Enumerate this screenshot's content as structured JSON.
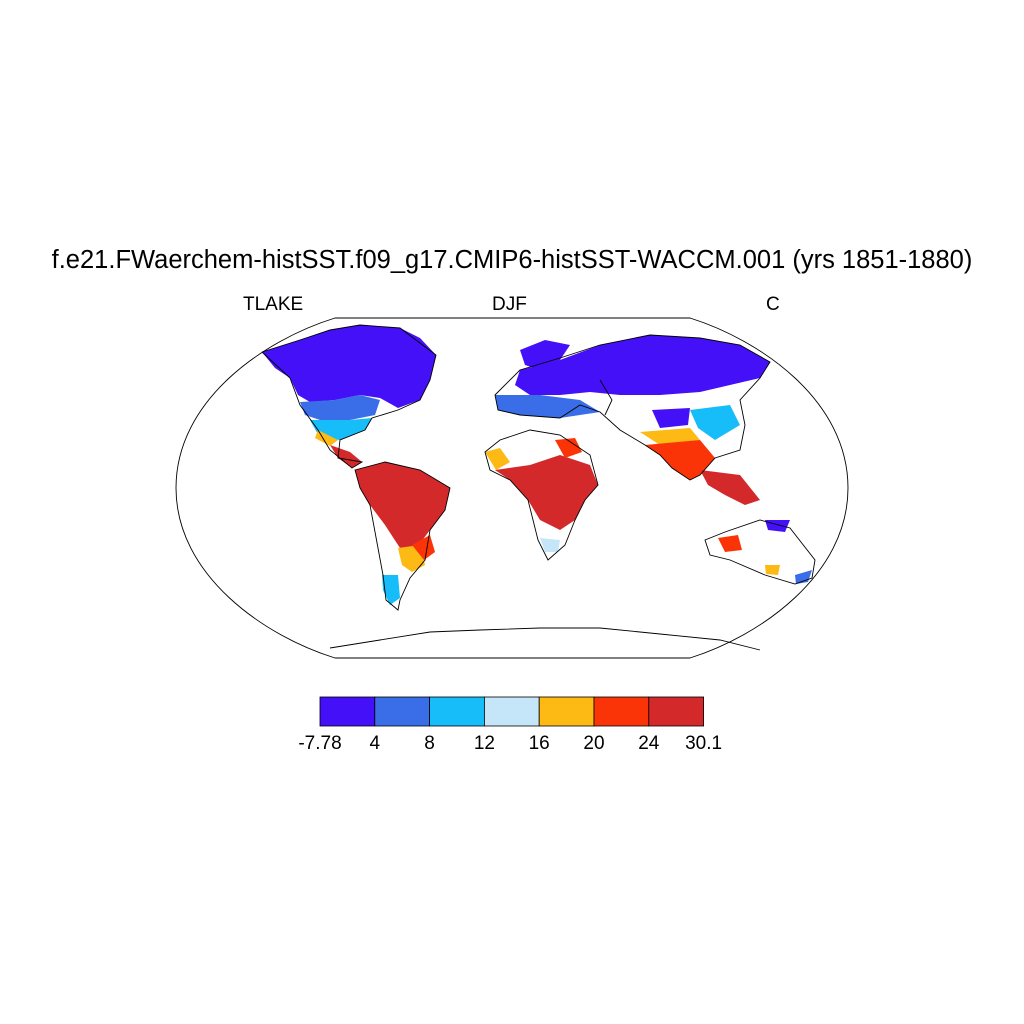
{
  "title": "f.e21.FWaerchem-histSST.f09_g17.CMIP6-histSST-WACCM.001 (yrs 1851-1880)",
  "left_label": "TLAKE",
  "center_label": "DJF",
  "right_label": "C",
  "colorbar": {
    "colors": [
      "#4410f7",
      "#3a6ee8",
      "#17bdf9",
      "#c5e6f8",
      "#fdb914",
      "#fb3407",
      "#d4292a"
    ],
    "tick_labels": [
      "-7.78",
      "4",
      "8",
      "12",
      "16",
      "20",
      "24",
      "30.1"
    ]
  },
  "regions": [
    {
      "name": "north-america-arctic",
      "color": "#4410f7"
    },
    {
      "name": "eurasia-north",
      "color": "#4410f7"
    },
    {
      "name": "south-america",
      "color": "#d4292a"
    },
    {
      "name": "africa",
      "color": "#d4292a"
    },
    {
      "name": "south-asia",
      "color": "#fb3407"
    },
    {
      "name": "australia",
      "color": "#fb3407"
    }
  ]
}
